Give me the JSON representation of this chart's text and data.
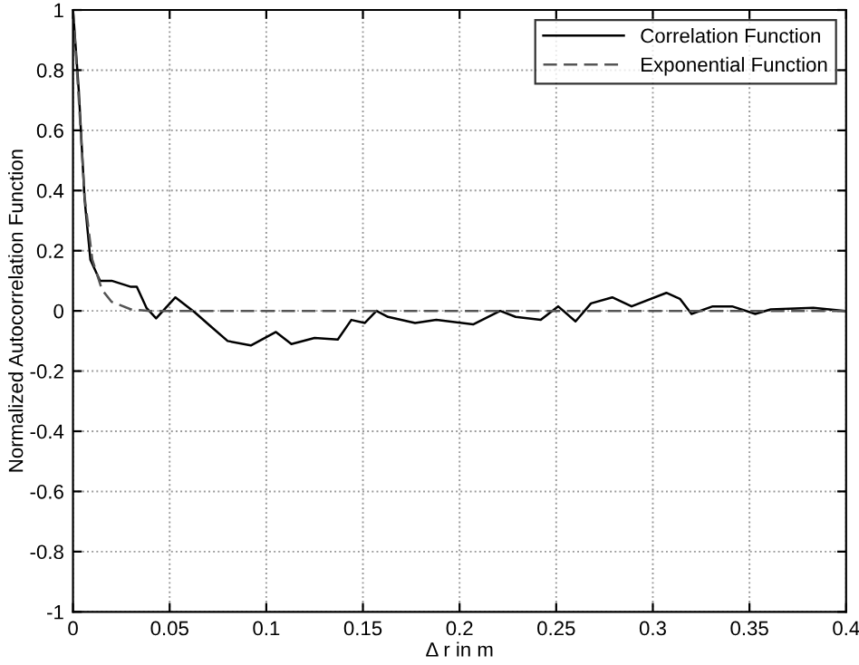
{
  "chart_data": {
    "type": "line",
    "xlabel": "Δ r in m",
    "ylabel": "Normalized Autocorrelation Function",
    "xlim": [
      0,
      0.4
    ],
    "ylim": [
      -1,
      1
    ],
    "xticks": [
      0,
      0.05,
      0.1,
      0.15,
      0.2,
      0.25,
      0.3,
      0.35,
      0.4
    ],
    "yticks": [
      -1,
      -0.8,
      -0.6,
      -0.4,
      -0.2,
      0,
      0.2,
      0.4,
      0.6,
      0.8,
      1
    ],
    "grid": true,
    "legend": "top right",
    "series": [
      {
        "name": "Correlation Function",
        "color": "#000000",
        "line_style": "solid",
        "x": [
          0,
          0.003,
          0.006,
          0.009,
          0.014,
          0.02,
          0.03,
          0.033,
          0.038,
          0.043,
          0.053,
          0.063,
          0.071,
          0.08,
          0.092,
          0.105,
          0.113,
          0.125,
          0.137,
          0.144,
          0.151,
          0.157,
          0.163,
          0.177,
          0.188,
          0.207,
          0.221,
          0.229,
          0.242,
          0.251,
          0.26,
          0.268,
          0.279,
          0.289,
          0.307,
          0.314,
          0.32,
          0.331,
          0.341,
          0.353,
          0.361,
          0.383,
          0.399
        ],
        "values": [
          1,
          0.73,
          0.37,
          0.17,
          0.1,
          0.1,
          0.08,
          0.08,
          0.01,
          -0.025,
          0.045,
          -0.005,
          -0.05,
          -0.1,
          -0.115,
          -0.07,
          -0.11,
          -0.09,
          -0.095,
          -0.03,
          -0.04,
          0,
          -0.02,
          -0.04,
          -0.03,
          -0.045,
          0,
          -0.02,
          -0.03,
          0.015,
          -0.035,
          0.025,
          0.045,
          0.015,
          0.06,
          0.04,
          -0.01,
          0.015,
          0.015,
          -0.01,
          0.005,
          0.01,
          0
        ]
      },
      {
        "name": "Exponential Function",
        "color": "#555555",
        "line_style": "dashed",
        "x": [
          0,
          0.003,
          0.006,
          0.01,
          0.015,
          0.02,
          0.03,
          0.04,
          0.4
        ],
        "values": [
          1,
          0.7,
          0.38,
          0.17,
          0.07,
          0.03,
          0.005,
          0,
          0
        ]
      }
    ]
  }
}
